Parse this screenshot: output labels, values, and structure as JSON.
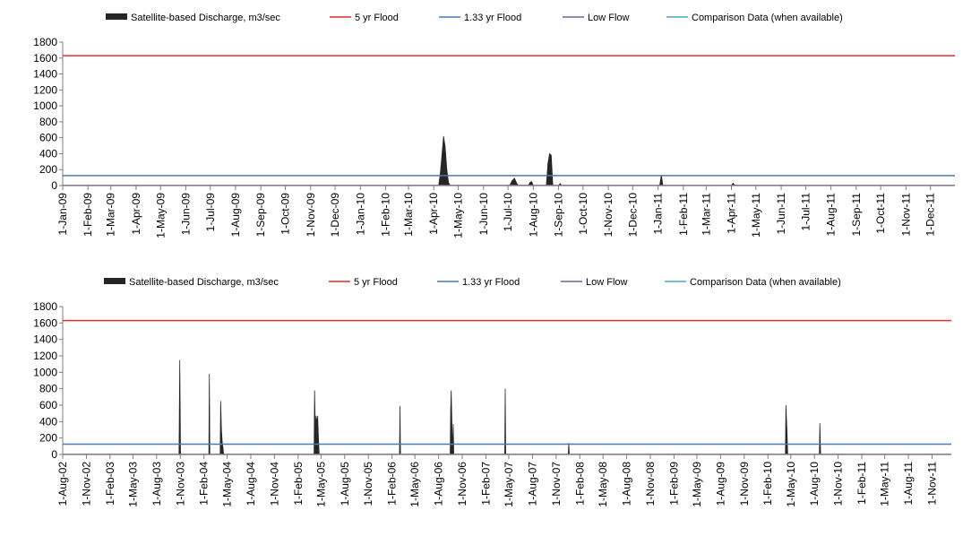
{
  "legend_styles": {
    "discharge": {
      "color": "#262626",
      "type": "area"
    },
    "flood5": {
      "color": "#e0302b",
      "type": "line"
    },
    "flood133": {
      "color": "#4a7bb7",
      "type": "line"
    },
    "lowflow": {
      "color": "#7a5a9a",
      "type": "line"
    },
    "comparison": {
      "color": "#4aacc6",
      "type": "line"
    }
  },
  "chart_data": [
    {
      "type": "area",
      "legend": [
        {
          "key": "discharge",
          "label": "Satellite-based Discharge, m3/sec"
        },
        {
          "key": "flood5",
          "label": "5 yr Flood"
        },
        {
          "key": "flood133",
          "label": "1.33 yr Flood"
        },
        {
          "key": "lowflow",
          "label": "Low Flow"
        },
        {
          "key": "comparison",
          "label": "Comparison Data (when available)"
        }
      ],
      "ylim": [
        0,
        1800
      ],
      "yticks": [
        0,
        200,
        400,
        600,
        800,
        1000,
        1200,
        1400,
        1600,
        1800
      ],
      "xlim": [
        "2009-01-01",
        "2011-12-31"
      ],
      "xticks": [
        {
          "date": "2009-01-01",
          "label": "1-Jan-09"
        },
        {
          "date": "2009-02-01",
          "label": "1-Feb-09"
        },
        {
          "date": "2009-03-01",
          "label": "1-Mar-09"
        },
        {
          "date": "2009-04-01",
          "label": "1-Apr-09"
        },
        {
          "date": "2009-05-01",
          "label": "1-May-09"
        },
        {
          "date": "2009-06-01",
          "label": "1-Jun-09"
        },
        {
          "date": "2009-07-01",
          "label": "1-Jul-09"
        },
        {
          "date": "2009-08-01",
          "label": "1-Aug-09"
        },
        {
          "date": "2009-09-01",
          "label": "1-Sep-09"
        },
        {
          "date": "2009-10-01",
          "label": "1-Oct-09"
        },
        {
          "date": "2009-11-01",
          "label": "1-Nov-09"
        },
        {
          "date": "2009-12-01",
          "label": "1-Dec-09"
        },
        {
          "date": "2010-01-01",
          "label": "1-Jan-10"
        },
        {
          "date": "2010-02-01",
          "label": "1-Feb-10"
        },
        {
          "date": "2010-03-01",
          "label": "1-Mar-10"
        },
        {
          "date": "2010-04-01",
          "label": "1-Apr-10"
        },
        {
          "date": "2010-05-01",
          "label": "1-May-10"
        },
        {
          "date": "2010-06-01",
          "label": "1-Jun-10"
        },
        {
          "date": "2010-07-01",
          "label": "1-Jul-10"
        },
        {
          "date": "2010-08-01",
          "label": "1-Aug-10"
        },
        {
          "date": "2010-09-01",
          "label": "1-Sep-10"
        },
        {
          "date": "2010-10-01",
          "label": "1-Oct-10"
        },
        {
          "date": "2010-11-01",
          "label": "1-Nov-10"
        },
        {
          "date": "2010-12-01",
          "label": "1-Dec-10"
        },
        {
          "date": "2011-01-01",
          "label": "1-Jan-11"
        },
        {
          "date": "2011-02-01",
          "label": "1-Feb-11"
        },
        {
          "date": "2011-03-01",
          "label": "1-Mar-11"
        },
        {
          "date": "2011-04-01",
          "label": "1-Apr-11"
        },
        {
          "date": "2011-05-01",
          "label": "1-May-11"
        },
        {
          "date": "2011-06-01",
          "label": "1-Jun-11"
        },
        {
          "date": "2011-07-01",
          "label": "1-Jul-11"
        },
        {
          "date": "2011-08-01",
          "label": "1-Aug-11"
        },
        {
          "date": "2011-09-01",
          "label": "1-Sep-11"
        },
        {
          "date": "2011-10-01",
          "label": "1-Oct-11"
        },
        {
          "date": "2011-11-01",
          "label": "1-Nov-11"
        },
        {
          "date": "2011-12-01",
          "label": "1-Dec-11"
        }
      ],
      "reference_lines": [
        {
          "key": "flood5",
          "value": 1630
        },
        {
          "key": "flood133",
          "value": 125
        },
        {
          "key": "lowflow",
          "value": 2
        }
      ],
      "discharge": [
        [
          "2009-01-01",
          0
        ],
        [
          "2010-04-07",
          0
        ],
        [
          "2010-04-09",
          150
        ],
        [
          "2010-04-11",
          380
        ],
        [
          "2010-04-13",
          620
        ],
        [
          "2010-04-15",
          480
        ],
        [
          "2010-04-17",
          200
        ],
        [
          "2010-04-19",
          40
        ],
        [
          "2010-04-21",
          0
        ],
        [
          "2010-07-03",
          0
        ],
        [
          "2010-07-06",
          60
        ],
        [
          "2010-07-09",
          90
        ],
        [
          "2010-07-12",
          20
        ],
        [
          "2010-07-14",
          0
        ],
        [
          "2010-07-26",
          0
        ],
        [
          "2010-07-28",
          40
        ],
        [
          "2010-07-30",
          50
        ],
        [
          "2010-08-01",
          0
        ],
        [
          "2010-08-17",
          0
        ],
        [
          "2010-08-19",
          280
        ],
        [
          "2010-08-21",
          400
        ],
        [
          "2010-08-23",
          380
        ],
        [
          "2010-08-25",
          0
        ],
        [
          "2010-09-01",
          0
        ],
        [
          "2010-09-03",
          25
        ],
        [
          "2010-09-05",
          0
        ],
        [
          "2011-01-03",
          0
        ],
        [
          "2011-01-05",
          130
        ],
        [
          "2011-01-07",
          0
        ],
        [
          "2011-04-01",
          0
        ],
        [
          "2011-04-03",
          30
        ],
        [
          "2011-04-05",
          0
        ],
        [
          "2011-12-31",
          0
        ]
      ]
    },
    {
      "type": "area",
      "legend": [
        {
          "key": "discharge",
          "label": "Satellite-based Discharge, m3/sec"
        },
        {
          "key": "flood5",
          "label": "5 yr Flood"
        },
        {
          "key": "flood133",
          "label": "1.33 yr Flood"
        },
        {
          "key": "lowflow",
          "label": "Low Flow"
        },
        {
          "key": "comparison",
          "label": "Comparison Data (when available)"
        }
      ],
      "ylim": [
        0,
        1800
      ],
      "yticks": [
        0,
        200,
        400,
        600,
        800,
        1000,
        1200,
        1400,
        1600,
        1800
      ],
      "xlim": [
        "2002-08-01",
        "2012-01-15"
      ],
      "xticks": [
        {
          "date": "2002-08-01",
          "label": "1-Aug-02"
        },
        {
          "date": "2002-11-01",
          "label": "1-Nov-02"
        },
        {
          "date": "2003-02-01",
          "label": "1-Feb-03"
        },
        {
          "date": "2003-05-01",
          "label": "1-May-03"
        },
        {
          "date": "2003-08-01",
          "label": "1-Aug-03"
        },
        {
          "date": "2003-11-01",
          "label": "1-Nov-03"
        },
        {
          "date": "2004-02-01",
          "label": "1-Feb-04"
        },
        {
          "date": "2004-05-01",
          "label": "1-May-04"
        },
        {
          "date": "2004-08-01",
          "label": "1-Aug-04"
        },
        {
          "date": "2004-11-01",
          "label": "1-Nov-04"
        },
        {
          "date": "2005-02-01",
          "label": "1-Feb-05"
        },
        {
          "date": "2005-05-01",
          "label": "1-May-05"
        },
        {
          "date": "2005-08-01",
          "label": "1-Aug-05"
        },
        {
          "date": "2005-11-01",
          "label": "1-Nov-05"
        },
        {
          "date": "2006-02-01",
          "label": "1-Feb-06"
        },
        {
          "date": "2006-05-01",
          "label": "1-May-06"
        },
        {
          "date": "2006-08-01",
          "label": "1-Aug-06"
        },
        {
          "date": "2006-11-01",
          "label": "1-Nov-06"
        },
        {
          "date": "2007-02-01",
          "label": "1-Feb-07"
        },
        {
          "date": "2007-05-01",
          "label": "1-May-07"
        },
        {
          "date": "2007-08-01",
          "label": "1-Aug-07"
        },
        {
          "date": "2007-11-01",
          "label": "1-Nov-07"
        },
        {
          "date": "2008-02-01",
          "label": "1-Feb-08"
        },
        {
          "date": "2008-05-01",
          "label": "1-May-08"
        },
        {
          "date": "2008-08-01",
          "label": "1-Aug-08"
        },
        {
          "date": "2008-11-01",
          "label": "1-Nov-08"
        },
        {
          "date": "2009-02-01",
          "label": "1-Feb-09"
        },
        {
          "date": "2009-05-01",
          "label": "1-May-09"
        },
        {
          "date": "2009-08-01",
          "label": "1-Aug-09"
        },
        {
          "date": "2009-11-01",
          "label": "1-Nov-09"
        },
        {
          "date": "2010-02-01",
          "label": "1-Feb-10"
        },
        {
          "date": "2010-05-01",
          "label": "1-May-10"
        },
        {
          "date": "2010-08-01",
          "label": "1-Aug-10"
        },
        {
          "date": "2010-11-01",
          "label": "1-Nov-10"
        },
        {
          "date": "2011-02-01",
          "label": "1-Feb-11"
        },
        {
          "date": "2011-05-01",
          "label": "1-May-11"
        },
        {
          "date": "2011-08-01",
          "label": "1-Aug-11"
        },
        {
          "date": "2011-11-01",
          "label": "1-Nov-11"
        }
      ],
      "reference_lines": [
        {
          "key": "flood5",
          "value": 1630
        },
        {
          "key": "flood133",
          "value": 125
        },
        {
          "key": "lowflow",
          "value": 2
        }
      ],
      "discharge": [
        [
          "2002-08-01",
          0
        ],
        [
          "2003-10-27",
          0
        ],
        [
          "2003-10-30",
          1150
        ],
        [
          "2003-11-02",
          0
        ],
        [
          "2004-02-20",
          0
        ],
        [
          "2004-02-22",
          980
        ],
        [
          "2004-02-24",
          0
        ],
        [
          "2004-04-04",
          0
        ],
        [
          "2004-04-06",
          650
        ],
        [
          "2004-04-09",
          300
        ],
        [
          "2004-04-12",
          150
        ],
        [
          "2004-04-15",
          80
        ],
        [
          "2004-04-18",
          0
        ],
        [
          "2005-04-04",
          0
        ],
        [
          "2005-04-06",
          780
        ],
        [
          "2005-04-09",
          300
        ],
        [
          "2005-04-12",
          470
        ],
        [
          "2005-04-15",
          380
        ],
        [
          "2005-04-18",
          470
        ],
        [
          "2005-04-21",
          200
        ],
        [
          "2005-04-24",
          0
        ],
        [
          "2006-03-02",
          0
        ],
        [
          "2006-03-04",
          590
        ],
        [
          "2006-03-06",
          0
        ],
        [
          "2006-09-15",
          0
        ],
        [
          "2006-09-17",
          550
        ],
        [
          "2006-09-19",
          780
        ],
        [
          "2006-09-22",
          350
        ],
        [
          "2006-09-25",
          0
        ],
        [
          "2006-09-27",
          370
        ],
        [
          "2006-09-29",
          0
        ],
        [
          "2007-04-15",
          0
        ],
        [
          "2007-04-17",
          800
        ],
        [
          "2007-04-19",
          0
        ],
        [
          "2007-12-18",
          0
        ],
        [
          "2007-12-20",
          140
        ],
        [
          "2007-12-22",
          0
        ],
        [
          "2010-04-10",
          0
        ],
        [
          "2010-04-12",
          600
        ],
        [
          "2010-04-16",
          300
        ],
        [
          "2010-04-19",
          0
        ],
        [
          "2010-08-20",
          0
        ],
        [
          "2010-08-22",
          380
        ],
        [
          "2010-08-25",
          0
        ],
        [
          "2012-01-15",
          0
        ]
      ]
    }
  ]
}
